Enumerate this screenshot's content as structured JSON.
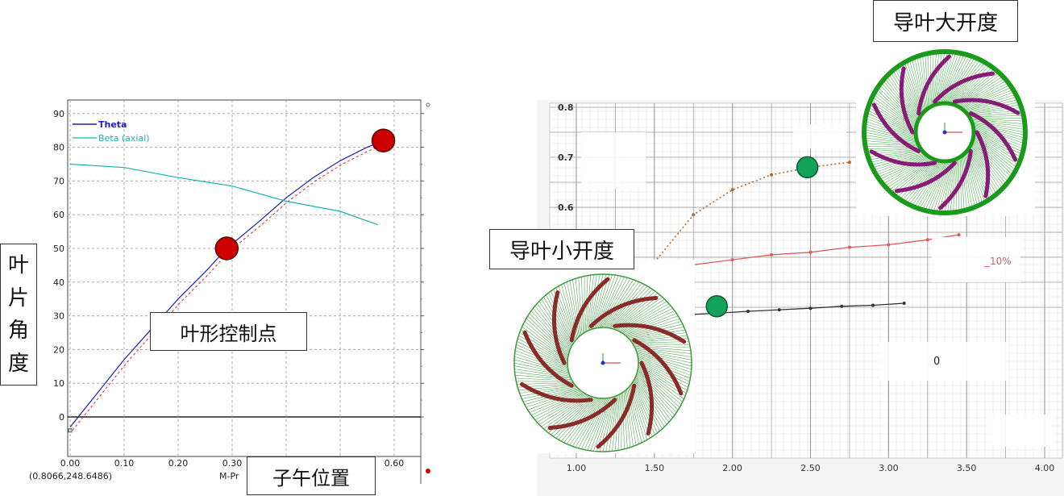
{
  "left_chart": {
    "y_tick_labels": [
      "90",
      "80",
      "70",
      "60",
      "50",
      "40",
      "30",
      "20",
      "10",
      "0"
    ],
    "x_tick_labels": [
      "0.00",
      "0.10",
      "0.20",
      "0.30",
      "0.40",
      "0.50",
      "0.60"
    ],
    "legend": {
      "theta": "Theta",
      "beta": "Beta (axial)"
    },
    "coordinate_readout": "(0.8066,248.6486)",
    "x_axis_name_partial": "M-Pr",
    "colors": {
      "theta": "#1f1fb8",
      "beta": "#19b2b2",
      "control_point": "#cc0000"
    }
  },
  "right_chart": {
    "y_tick_labels": [
      "0.8",
      "0.7",
      "0.6"
    ],
    "x_tick_labels": [
      "1.00",
      "1.50",
      "2.00",
      "2.50",
      "3.00",
      "3.50",
      "4.00"
    ],
    "curve_labels": {
      "red_curve": "_10%",
      "black_curve": "0"
    },
    "colors": {
      "orange_curve": "#b86a2a",
      "red_curve": "#e05a5a",
      "black_curve": "#333333",
      "marker": "#12a25a"
    }
  },
  "annotations": {
    "y_axis_label_chars": [
      "叶",
      "片",
      "角",
      "度"
    ],
    "blade_control_points": "叶形控制点",
    "meridional_position": "子午位置",
    "small_guide_vane_opening": "导叶小开度",
    "large_guide_vane_opening": "导叶大开度"
  },
  "chart_data": [
    {
      "type": "line",
      "series": [
        {
          "name": "Theta",
          "x": [
            0.0,
            0.05,
            0.1,
            0.15,
            0.2,
            0.25,
            0.29,
            0.35,
            0.4,
            0.45,
            0.5,
            0.55,
            0.58
          ],
          "y": [
            -3,
            7,
            17,
            26,
            35,
            43,
            50,
            58,
            65,
            71,
            76,
            80,
            82
          ]
        },
        {
          "name": "Beta (axial)",
          "x": [
            0.0,
            0.1,
            0.2,
            0.3,
            0.4,
            0.5,
            0.57
          ],
          "y": [
            75,
            74,
            71,
            68.5,
            64,
            61,
            57
          ]
        }
      ],
      "control_points": [
        {
          "x": 0.29,
          "y": 50
        },
        {
          "x": 0.58,
          "y": 82
        }
      ],
      "xlim": [
        0.0,
        0.62
      ],
      "ylim": [
        -5,
        92
      ],
      "grid": true,
      "legend_position": "top-left"
    },
    {
      "type": "line",
      "series": [
        {
          "x": [
            1.5,
            1.75,
            2.0,
            2.25,
            2.5,
            2.75
          ],
          "y": [
            0.49,
            0.585,
            0.635,
            0.665,
            0.68,
            0.69
          ]
        },
        {
          "name": "_10%",
          "x": [
            1.5,
            1.75,
            2.0,
            2.25,
            2.5,
            2.75,
            3.0,
            3.25,
            3.45
          ],
          "y": [
            0.465,
            0.485,
            0.495,
            0.505,
            0.51,
            0.52,
            0.525,
            0.535,
            0.545
          ]
        },
        {
          "name": "0",
          "x": [
            1.7,
            1.9,
            2.1,
            2.3,
            2.5,
            2.7,
            2.9,
            3.1
          ],
          "y": [
            0.385,
            0.388,
            0.392,
            0.395,
            0.398,
            0.402,
            0.404,
            0.408
          ]
        }
      ],
      "markers": [
        {
          "x": 2.48,
          "y": 0.68
        },
        {
          "x": 1.9,
          "y": 0.402
        }
      ],
      "xlim": [
        1.0,
        4.0
      ],
      "ylim": [
        0.38,
        0.8
      ],
      "grid": true
    }
  ]
}
